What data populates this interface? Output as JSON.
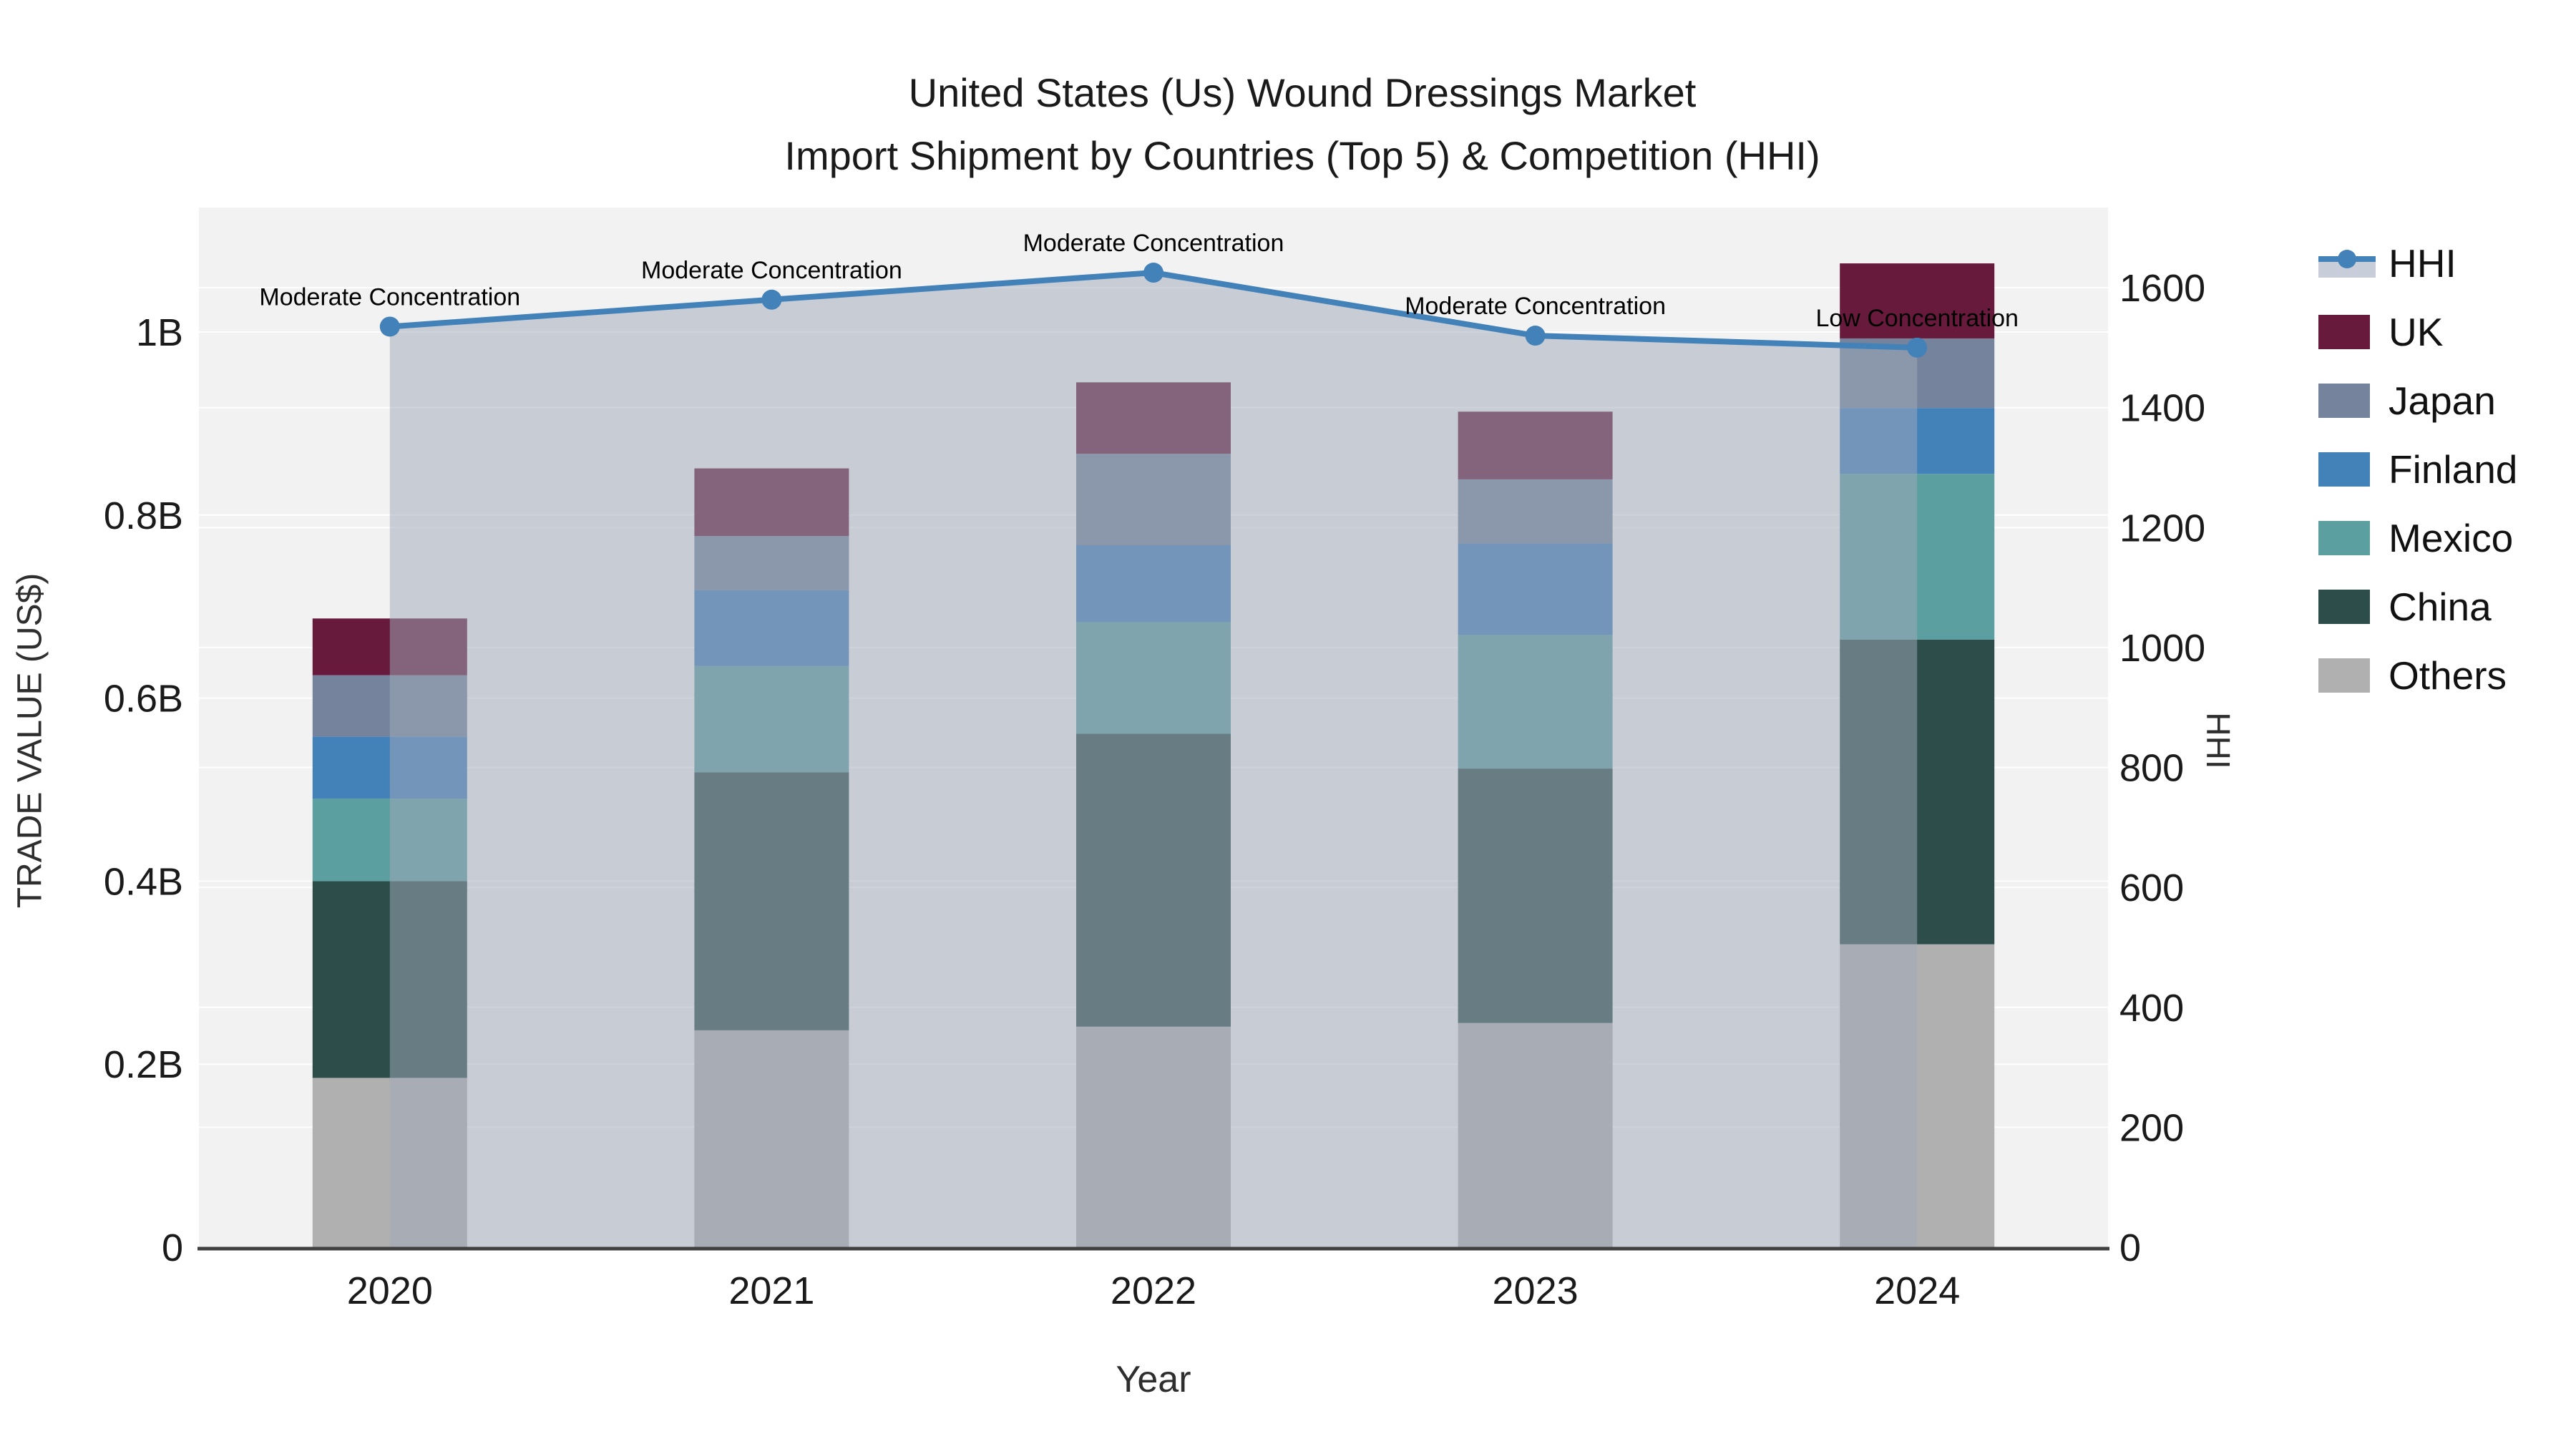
{
  "title": {
    "line1": "United States (Us) Wound Dressings Market",
    "line2": "Import Shipment by Countries (Top 5) & Competition (HHI)"
  },
  "axes": {
    "y_left": {
      "label": "TRADE VALUE (US$)",
      "tick_values": [
        0,
        0.2,
        0.4,
        0.6,
        0.8,
        1.0
      ],
      "tick_labels": [
        "0",
        "0.2B",
        "0.4B",
        "0.6B",
        "0.8B",
        "1B"
      ]
    },
    "y_right": {
      "label": "HHI",
      "tick_values": [
        0,
        200,
        400,
        600,
        800,
        1000,
        1200,
        1400,
        1600
      ]
    },
    "x": {
      "label": "Year",
      "tick_labels": [
        "2020",
        "2021",
        "2022",
        "2023",
        "2024"
      ]
    }
  },
  "legend": {
    "items": [
      {
        "label": "HHI",
        "type": "line",
        "color": "#4381b9",
        "band": "#c7ced9"
      },
      {
        "label": "UK",
        "type": "patch",
        "color": "#681a3c"
      },
      {
        "label": "Japan",
        "type": "patch",
        "color": "#75849c"
      },
      {
        "label": "Finland",
        "type": "patch",
        "color": "#4381b9"
      },
      {
        "label": "Mexico",
        "type": "patch",
        "color": "#5c9fa0"
      },
      {
        "label": "China",
        "type": "patch",
        "color": "#2d4d4a"
      },
      {
        "label": "Others",
        "type": "patch",
        "color": "#b0b0b0"
      }
    ]
  },
  "chart_data": {
    "type": "bar",
    "subtype": "stacked-bars-with-hhi-line",
    "title": "United States (Us) Wound Dressings Market Import Shipment by Countries (Top 5) & Competition (HHI)",
    "xlabel": "Year",
    "ylabel_left": "TRADE VALUE (US$)",
    "ylabel_right": "HHI",
    "categories": [
      "2020",
      "2021",
      "2022",
      "2023",
      "2024"
    ],
    "bar_value_unit": "billions US$",
    "series": [
      {
        "name": "Others",
        "color": "#b0b0b0",
        "values": [
          0.185,
          0.237,
          0.241,
          0.245,
          0.331
        ]
      },
      {
        "name": "China",
        "color": "#2d4d4a",
        "values": [
          0.215,
          0.282,
          0.32,
          0.278,
          0.333
        ]
      },
      {
        "name": "Mexico",
        "color": "#5c9fa0",
        "values": [
          0.09,
          0.116,
          0.122,
          0.146,
          0.181
        ]
      },
      {
        "name": "Finland",
        "color": "#4381b9",
        "values": [
          0.068,
          0.083,
          0.084,
          0.1,
          0.072
        ]
      },
      {
        "name": "Japan",
        "color": "#75849c",
        "values": [
          0.067,
          0.059,
          0.1,
          0.07,
          0.076
        ]
      },
      {
        "name": "UK",
        "color": "#681a3c",
        "values": [
          0.062,
          0.074,
          0.078,
          0.074,
          0.082
        ]
      }
    ],
    "bar_totals": [
      0.687,
      0.851,
      0.945,
      0.913,
      1.075
    ],
    "line": {
      "name": "HHI",
      "axis": "right",
      "color": "#4381b9",
      "fill": "rgba(160,168,186,0.52)",
      "values": [
        1535,
        1580,
        1625,
        1520,
        1500
      ]
    },
    "annotations": [
      "Moderate Concentration",
      "Moderate Concentration",
      "Moderate Concentration",
      "Moderate Concentration",
      "Low Concentration"
    ],
    "ylim_left": [
      0,
      1.136
    ],
    "ylim_right": [
      0,
      1733
    ],
    "grid": true,
    "legend_position": "right",
    "plot_background": "#f2f2f2",
    "gridline_color": "#ffffff",
    "axisline_color": "#404040",
    "text_color": "#1a1a1a"
  }
}
